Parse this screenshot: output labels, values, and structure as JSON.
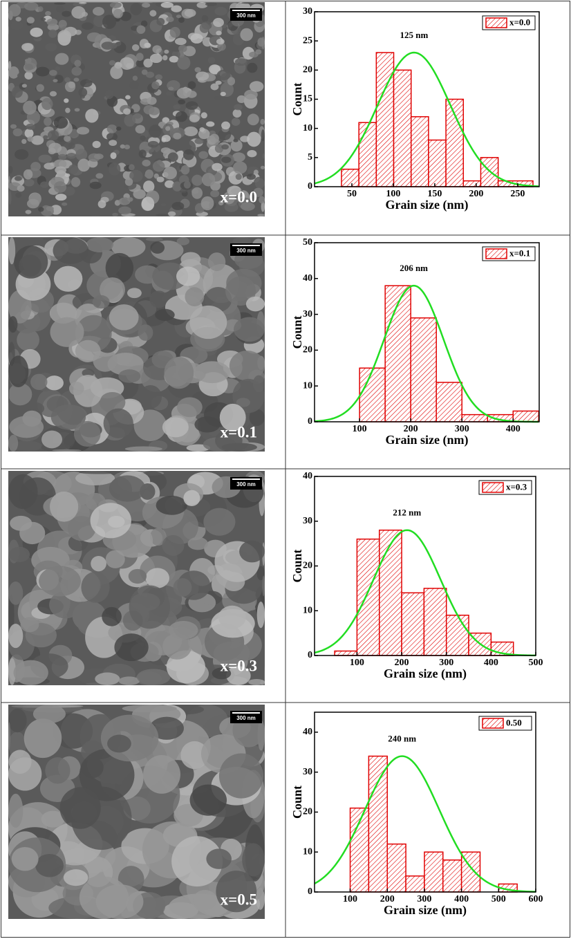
{
  "chart_data": [
    {
      "type": "histogram",
      "image_label": "x=0.0",
      "scale_bar": "300 nm",
      "annotation": "125 nm",
      "xlabel": "Grain size (nm)",
      "ylabel": "Count",
      "bins": [
        37.5,
        58.5,
        79.5,
        100.5,
        121.5,
        142.5,
        163.5,
        184.5,
        205.5,
        226.5,
        268.5
      ],
      "series": [
        {
          "name": "x=0.0",
          "color": "#e00000",
          "values": [
            3,
            11,
            23,
            20,
            12,
            8,
            15,
            1,
            5,
            1
          ]
        }
      ],
      "fit": {
        "color": "#22dd22",
        "center": 125,
        "height": 23,
        "width": 44
      },
      "xlim": [
        5,
        276
      ],
      "ylim": [
        0,
        30
      ],
      "xticks": [
        50,
        100,
        150,
        200,
        250
      ],
      "yticks": [
        0,
        5,
        10,
        15,
        20,
        25,
        30
      ]
    },
    {
      "type": "histogram",
      "image_label": "x=0.1",
      "scale_bar": "300 nm",
      "annotation": "206 nm",
      "xlabel": "Grain size (nm)",
      "ylabel": "Count",
      "bins": [
        100,
        150,
        200,
        250,
        300,
        350,
        400,
        450
      ],
      "series": [
        {
          "name": "x=0.1",
          "color": "#e00000",
          "values": [
            15,
            38,
            29,
            11,
            2,
            2,
            3
          ]
        }
      ],
      "fit": {
        "color": "#22dd22",
        "center": 206,
        "height": 38,
        "width": 58
      },
      "xlim": [
        12,
        451
      ],
      "ylim": [
        0,
        50
      ],
      "xticks": [
        100,
        200,
        300,
        400
      ],
      "yticks": [
        0,
        10,
        20,
        30,
        40,
        50
      ]
    },
    {
      "type": "histogram",
      "image_label": "x=0.3",
      "scale_bar": "300 nm",
      "annotation": "212 nm",
      "xlabel": "Grain size (nm)",
      "ylabel": "Count",
      "bins": [
        50,
        100,
        150,
        200,
        250,
        300,
        350,
        400,
        450
      ],
      "series": [
        {
          "name": "x=0.3",
          "color": "#e00000",
          "values": [
            1,
            26,
            28,
            14,
            15,
            9,
            5,
            3
          ]
        }
      ],
      "fit": {
        "color": "#22dd22",
        "center": 212,
        "height": 28,
        "width": 75
      },
      "xlim": [
        5,
        500
      ],
      "ylim": [
        0,
        40
      ],
      "xticks": [
        100,
        200,
        300,
        400,
        500
      ],
      "yticks": [
        0,
        10,
        20,
        30,
        40
      ]
    },
    {
      "type": "histogram",
      "image_label": "x=0.5",
      "scale_bar": "300 nm",
      "annotation": "240 nm",
      "xlabel": "Grain size (nm)",
      "ylabel": "Count",
      "bins": [
        100,
        150,
        200,
        250,
        300,
        350,
        400,
        450,
        500,
        550
      ],
      "series": [
        {
          "name": "0.50",
          "color": "#e00000",
          "values": [
            21,
            34,
            12,
            4,
            10,
            8,
            10,
            0,
            2
          ]
        }
      ],
      "fit": {
        "color": "#22dd22",
        "center": 240,
        "height": 34,
        "width": 100
      },
      "xlim": [
        4,
        600
      ],
      "ylim": [
        0,
        45
      ],
      "xticks": [
        100,
        200,
        300,
        400,
        500,
        600
      ],
      "yticks": [
        0,
        10,
        20,
        30,
        40
      ]
    }
  ]
}
